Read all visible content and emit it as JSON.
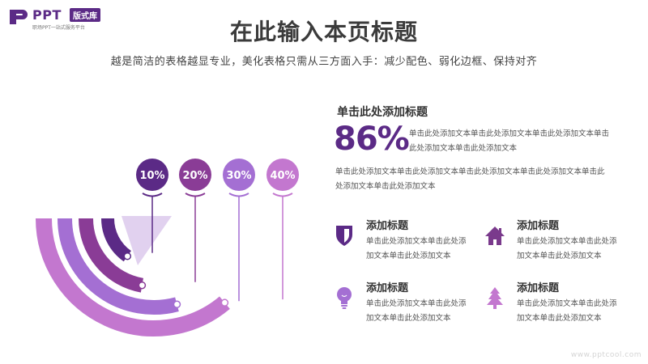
{
  "logo": {
    "name": "PPT",
    "badge": "版式库",
    "tagline": "职场PPT一站式服务平台",
    "icon": "ppt-logo-icon"
  },
  "title": "在此输入本页标题",
  "subtitle": "越是简洁的表格越显专业，美化表格只需从三方面入手：减少配色、弱化边框、保持对齐",
  "colors": {
    "purple_dark": "#5b2a86",
    "purple_mid": "#8a3c96",
    "purple_light": "#a46fd3",
    "purple_pink": "#c377cf",
    "purple_pale": "#d9c6eb"
  },
  "chart_data": {
    "type": "radial-bar",
    "categories": [
      "10%",
      "20%",
      "30%",
      "40%"
    ],
    "values": [
      10,
      20,
      30,
      40
    ]
  },
  "right": {
    "heading": "单击此处添加标题",
    "big_number": "86%",
    "number_desc": "单击此处添加文本单击此处添加文本单击此处添加文本单击此处添加文本单击此处添加文本",
    "paragraph": "单击此处添加文本单击此处添加文本单击此处添加文本单击此处添加文本单击此处添加文本单击此处添加文本"
  },
  "features": [
    {
      "icon": "shield-icon",
      "title": "添加标题",
      "text": "单击此处添加文本单击此处添加文本单击此处添加文本"
    },
    {
      "icon": "house-icon",
      "title": "添加标题",
      "text": "单击此处添加文本单击此处添加文本单击此处添加文本"
    },
    {
      "icon": "lightbulb-icon",
      "title": "添加标题",
      "text": "单击此处添加文本单击此处添加文本单击此处添加文本"
    },
    {
      "icon": "tree-icon",
      "title": "添加标题",
      "text": "单击此处添加文本单击此处添加文本单击此处添加文本"
    }
  ],
  "watermark": "www.pptcool.com"
}
